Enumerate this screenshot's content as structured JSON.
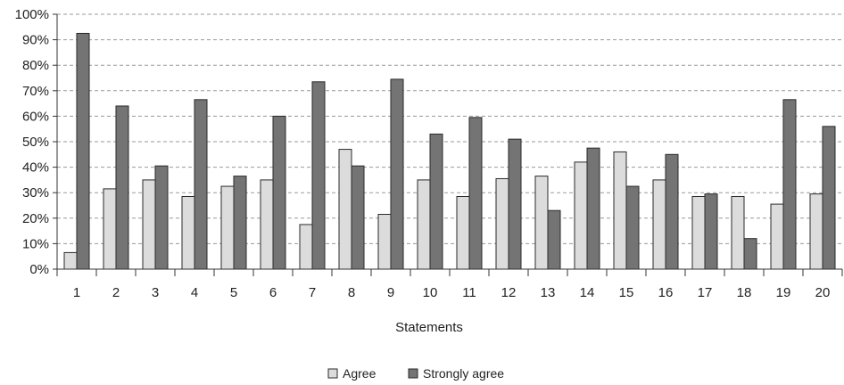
{
  "chart_data": {
    "type": "bar",
    "categories": [
      "1",
      "2",
      "3",
      "4",
      "5",
      "6",
      "7",
      "8",
      "9",
      "10",
      "11",
      "12",
      "13",
      "14",
      "15",
      "16",
      "17",
      "18",
      "19",
      "20"
    ],
    "series": [
      {
        "name": "Agree",
        "color": "#dcdcdc",
        "values": [
          6.5,
          31.5,
          35,
          28.5,
          32.5,
          35,
          17.5,
          47,
          21.5,
          35,
          28.5,
          35.5,
          36.5,
          42,
          46,
          35,
          28.5,
          28.5,
          25.5,
          29.5
        ]
      },
      {
        "name": "Strongly agree",
        "color": "#747474",
        "values": [
          92.5,
          64,
          40.5,
          66.5,
          36.5,
          60,
          73.5,
          40.5,
          74.5,
          53,
          59.5,
          51,
          23,
          47.5,
          32.5,
          45,
          29.5,
          12,
          66.5,
          56
        ]
      }
    ],
    "yticks": [
      "0%",
      "10%",
      "20%",
      "30%",
      "40%",
      "50%",
      "60%",
      "70%",
      "80%",
      "90%",
      "100%"
    ],
    "ylim": [
      0,
      100
    ],
    "xlabel": "Statements",
    "ylabel": "",
    "grid": "horizontal dashed",
    "legend_position": "bottom-center"
  }
}
